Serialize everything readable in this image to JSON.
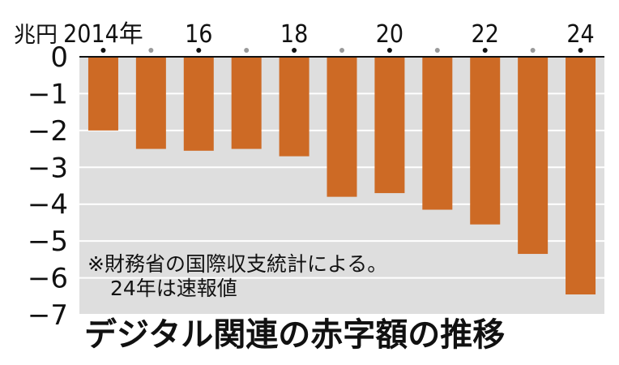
{
  "chart_data": {
    "type": "bar",
    "title": "デジタル関連の赤字額の推移",
    "ylabel": "兆円",
    "xlabel": "",
    "categories": [
      "2014",
      "2015",
      "2016",
      "2017",
      "2018",
      "2019",
      "2020",
      "2021",
      "2022",
      "2023",
      "2024"
    ],
    "values": [
      -2.0,
      -2.5,
      -2.55,
      -2.5,
      -2.7,
      -3.8,
      -3.7,
      -4.15,
      -4.55,
      -5.35,
      -6.45
    ],
    "ylim": [
      -7,
      0
    ],
    "yticks": [
      "0",
      "-1",
      "-2",
      "-3",
      "-4",
      "-5",
      "-6",
      "-7"
    ],
    "xtick_labels": [
      "2014年",
      "",
      "16",
      "",
      "18",
      "",
      "20",
      "",
      "22",
      "",
      "24"
    ],
    "grid": true,
    "note_lines": [
      "※財務省の国際収支統計による。",
      "24年は速報値"
    ],
    "colors": {
      "bar": "#cd6a25",
      "plot_bg": "#dedede",
      "grid": "#ffffff",
      "marker_labeled": "#111111",
      "marker_unlabeled": "#9a9a9a"
    }
  }
}
